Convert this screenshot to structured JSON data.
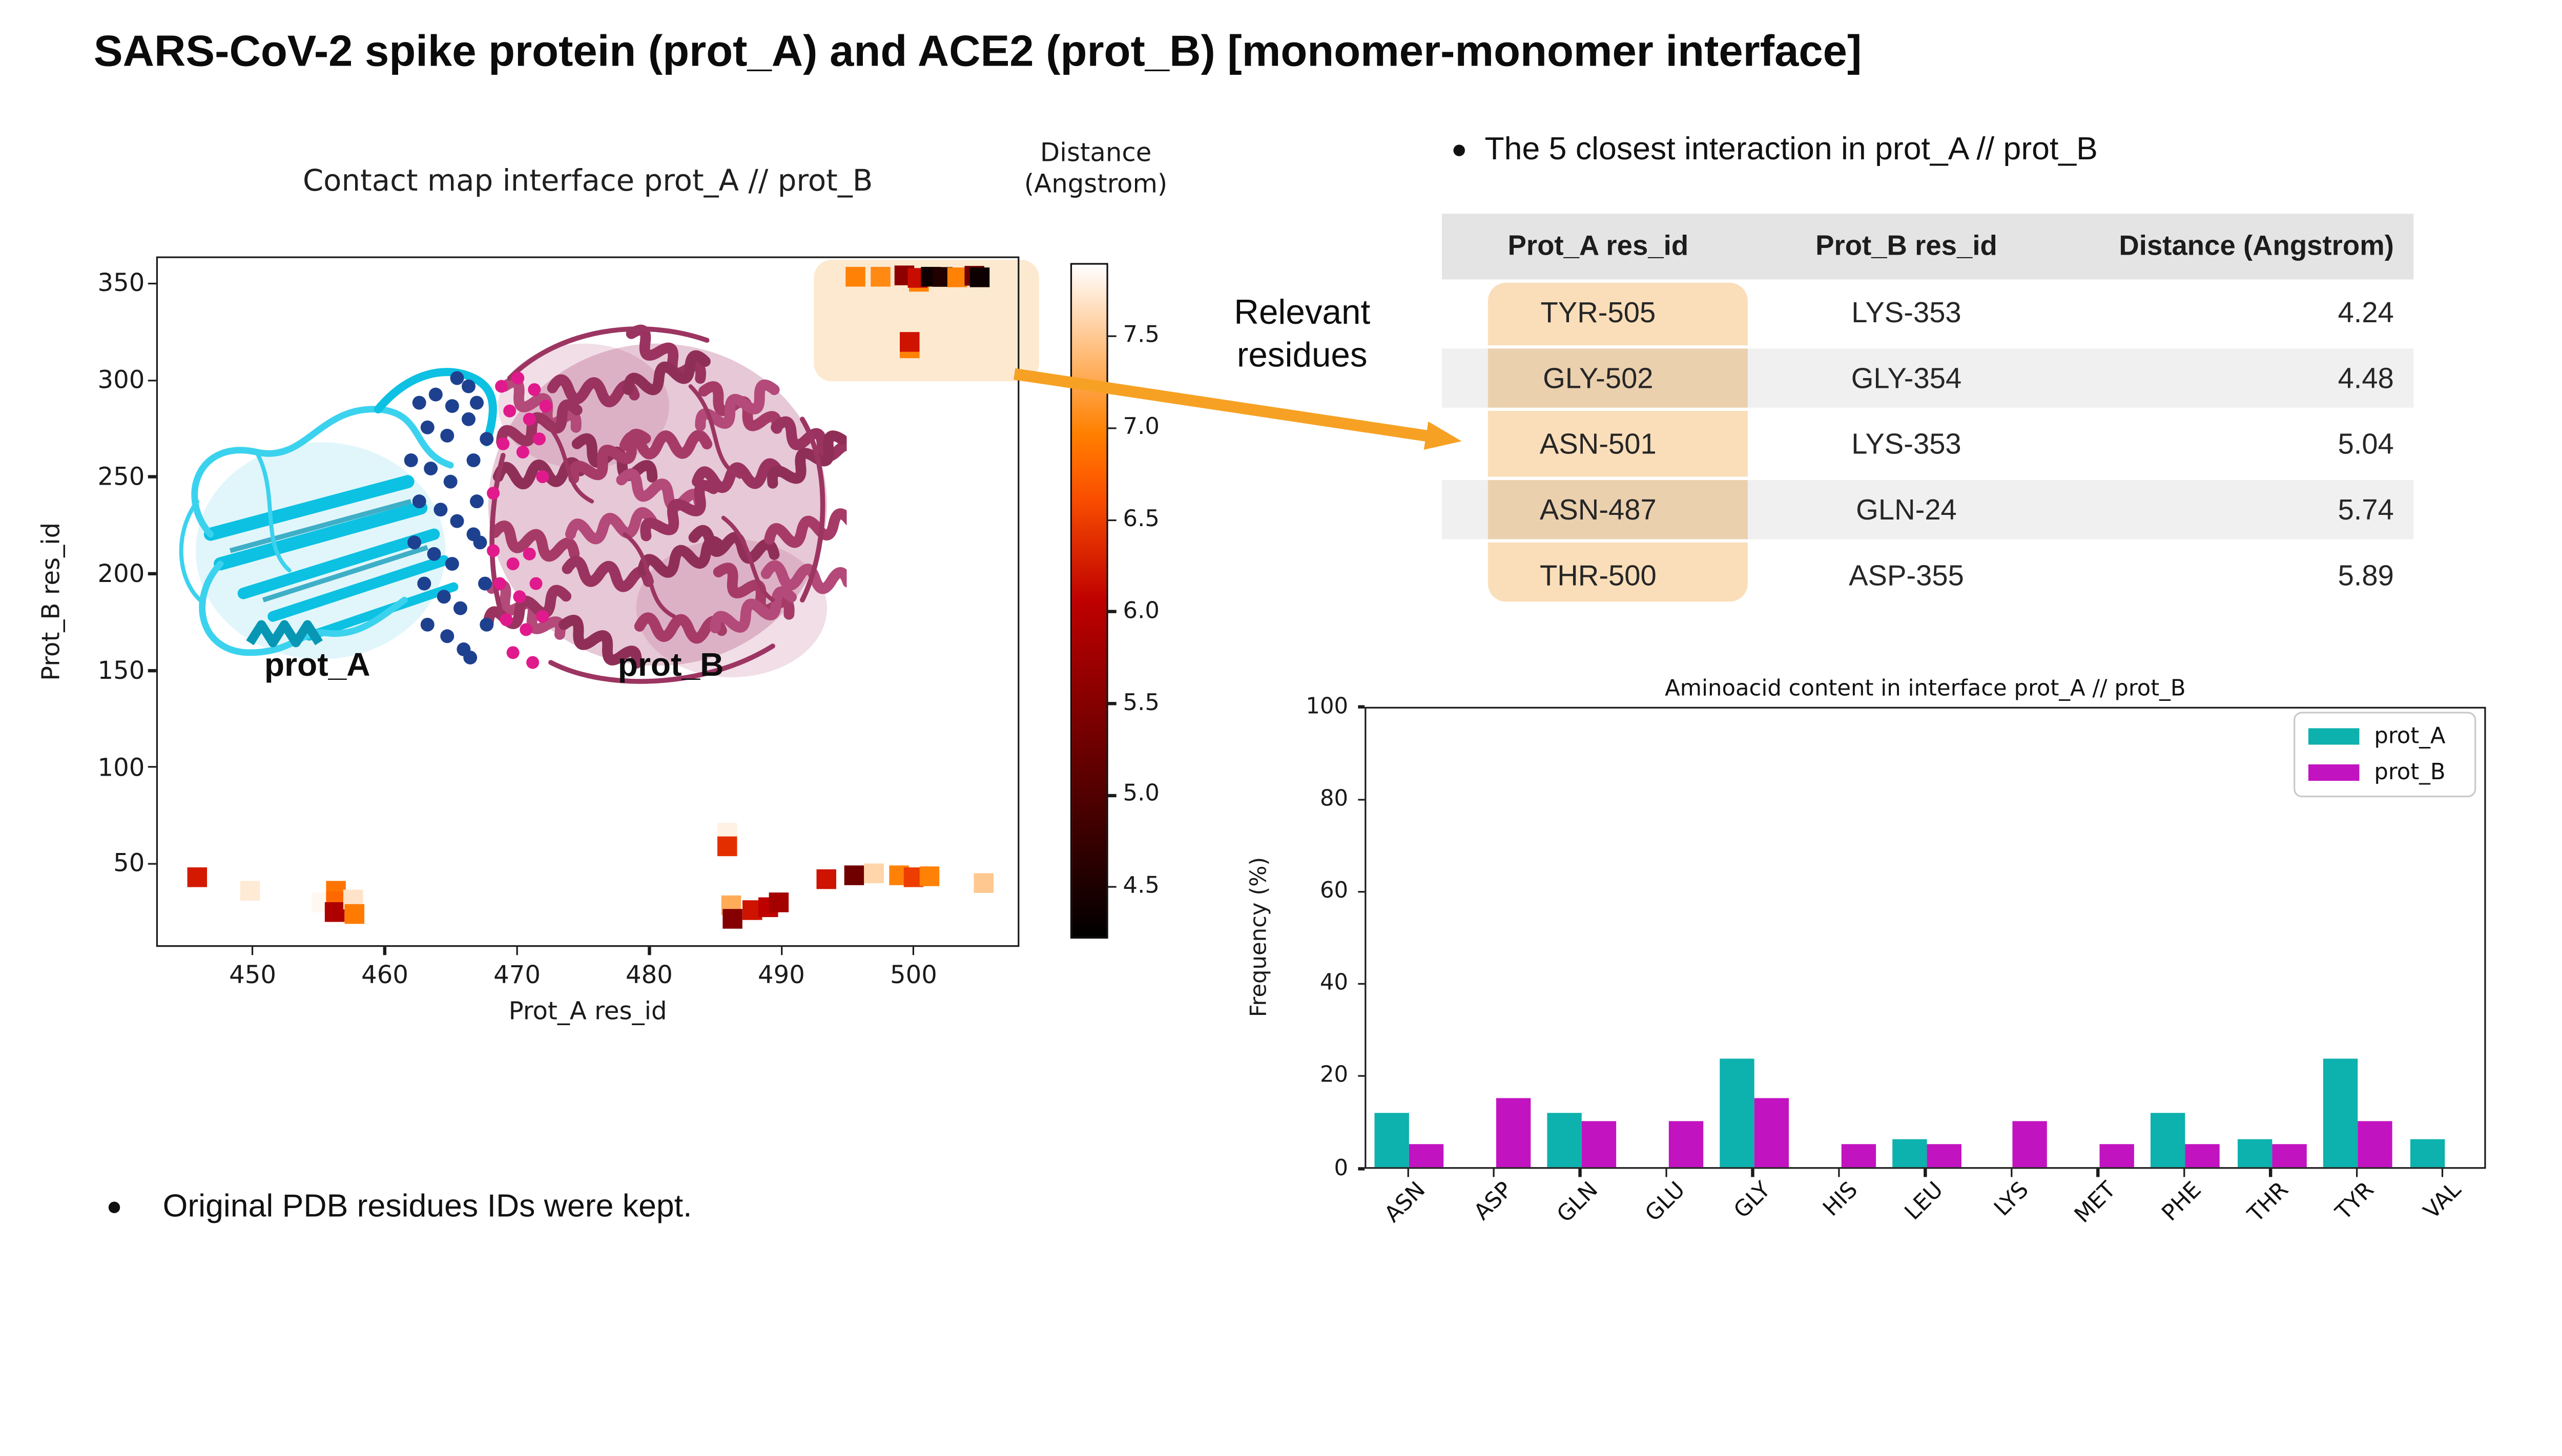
{
  "page_title": "SARS-CoV-2 spike protein (prot_A) and ACE2 (prot_B) [monomer-monomer interface]",
  "bullets": {
    "closest_interactions": "The 5 closest interaction in prot_A // prot_B",
    "pdb_note": "Original PDB residues IDs were kept."
  },
  "annotations": {
    "relevant_residues": "Relevant residues",
    "prot_a_structure_label": "prot_A",
    "prot_b_structure_label": "prot_B"
  },
  "table": {
    "headers": [
      "Prot_A res_id",
      "Prot_B res_id",
      "Distance (Angstrom)"
    ],
    "rows": [
      [
        "TYR-505",
        "LYS-353",
        "4.24"
      ],
      [
        "GLY-502",
        "GLY-354",
        "4.48"
      ],
      [
        "ASN-501",
        "LYS-353",
        "5.04"
      ],
      [
        "ASN-487",
        "GLN-24",
        "5.74"
      ],
      [
        "THR-500",
        "ASP-355",
        "5.89"
      ]
    ]
  },
  "colors": {
    "accent_orange": "#f6a124",
    "map_highlight_fill": "rgba(247,183,101,0.30)",
    "table_highlight_fill": "rgba(246,195,128,0.55)",
    "prot_a_series": "#0db1ad",
    "prot_b_series": "#c213c0",
    "prot_a_ribbon": "#0cc1e2",
    "prot_b_ribbon": "#a63b68",
    "table_header_bg": "#e4e4e4",
    "table_stripe_bg": "#f0f0f0"
  },
  "chart_data": [
    {
      "type": "scatter",
      "title": "Contact map interface prot_A // prot_B",
      "xlabel": "Prot_A res_id",
      "ylabel": "Prot_B res_id",
      "xlim": [
        442.7,
        508
      ],
      "ylim": [
        7,
        364
      ],
      "x_ticks": [
        450,
        460,
        470,
        480,
        490,
        500
      ],
      "y_ticks": [
        50,
        100,
        150,
        200,
        250,
        300,
        350
      ],
      "marker": "square",
      "colormap": "gist_heat",
      "colorbar": {
        "title_lines": [
          "Distance",
          "(Angstrom)"
        ],
        "ticks": [
          7.5,
          7.0,
          6.5,
          6.0,
          5.5,
          5.0,
          4.5
        ],
        "vmin": 4.22,
        "vmax": 7.9
      },
      "points": [
        {
          "x": 495.6,
          "y": 353.5,
          "d": 7.0
        },
        {
          "x": 497.5,
          "y": 353.5,
          "d": 7.05
        },
        {
          "x": 499.3,
          "y": 354.2,
          "d": 5.6
        },
        {
          "x": 500.4,
          "y": 350.9,
          "d": 7.0
        },
        {
          "x": 500.3,
          "y": 352.9,
          "d": 6.15
        },
        {
          "x": 501.3,
          "y": 353.5,
          "d": 4.35
        },
        {
          "x": 502.2,
          "y": 353.4,
          "d": 4.55
        },
        {
          "x": 503.3,
          "y": 353.2,
          "d": 7.0
        },
        {
          "x": 504.6,
          "y": 354.0,
          "d": 5.3
        },
        {
          "x": 505.0,
          "y": 353.2,
          "d": 4.35
        },
        {
          "x": 499.7,
          "y": 316.5,
          "d": 7.0
        },
        {
          "x": 499.7,
          "y": 319.8,
          "d": 6.2
        },
        {
          "x": 445.8,
          "y": 43,
          "d": 6.25
        },
        {
          "x": 449.8,
          "y": 36,
          "d": 7.75
        },
        {
          "x": 455.2,
          "y": 30,
          "d": 7.85
        },
        {
          "x": 456.3,
          "y": 36,
          "d": 6.9
        },
        {
          "x": 456.3,
          "y": 30.5,
          "d": 6.8
        },
        {
          "x": 456.2,
          "y": 25,
          "d": 5.9
        },
        {
          "x": 457.6,
          "y": 31.5,
          "d": 7.7
        },
        {
          "x": 457.7,
          "y": 24,
          "d": 6.95
        },
        {
          "x": 485.9,
          "y": 66,
          "d": 7.8
        },
        {
          "x": 485.9,
          "y": 59,
          "d": 6.4
        },
        {
          "x": 486.2,
          "y": 28.5,
          "d": 7.3
        },
        {
          "x": 486.3,
          "y": 21.5,
          "d": 5.5
        },
        {
          "x": 487.8,
          "y": 26,
          "d": 6.2
        },
        {
          "x": 489.0,
          "y": 27.5,
          "d": 6.05
        },
        {
          "x": 489.8,
          "y": 30,
          "d": 5.8
        },
        {
          "x": 493.4,
          "y": 42,
          "d": 6.2
        },
        {
          "x": 495.5,
          "y": 44,
          "d": 5.3
        },
        {
          "x": 497.0,
          "y": 45,
          "d": 7.6
        },
        {
          "x": 498.9,
          "y": 44,
          "d": 7.0
        },
        {
          "x": 500.0,
          "y": 43,
          "d": 6.5
        },
        {
          "x": 501.2,
          "y": 43.5,
          "d": 7.0
        },
        {
          "x": 503.0,
          "y": 42.5,
          "d": 7.9
        },
        {
          "x": 505.3,
          "y": 40,
          "d": 7.5
        }
      ]
    },
    {
      "type": "bar",
      "title": "Aminoacid content in interface prot_A // prot_B",
      "ylabel": "Frequency (%)",
      "ylim": [
        0,
        100
      ],
      "y_ticks": [
        0,
        20,
        40,
        60,
        80,
        100
      ],
      "categories": [
        "ASN",
        "ASP",
        "GLN",
        "GLU",
        "GLY",
        "HIS",
        "LEU",
        "LYS",
        "MET",
        "PHE",
        "THR",
        "TYR",
        "VAL"
      ],
      "series": [
        {
          "name": "prot_A",
          "color": "#0db1ad",
          "values": [
            11.8,
            0,
            11.8,
            0,
            23.5,
            0,
            5.9,
            0,
            0,
            11.8,
            5.9,
            23.5,
            5.9
          ]
        },
        {
          "name": "prot_B",
          "color": "#c213c0",
          "values": [
            5,
            15,
            10,
            10,
            15,
            5,
            5,
            10,
            5,
            5,
            5,
            10,
            0
          ]
        }
      ],
      "legend_position": "upper right"
    }
  ]
}
